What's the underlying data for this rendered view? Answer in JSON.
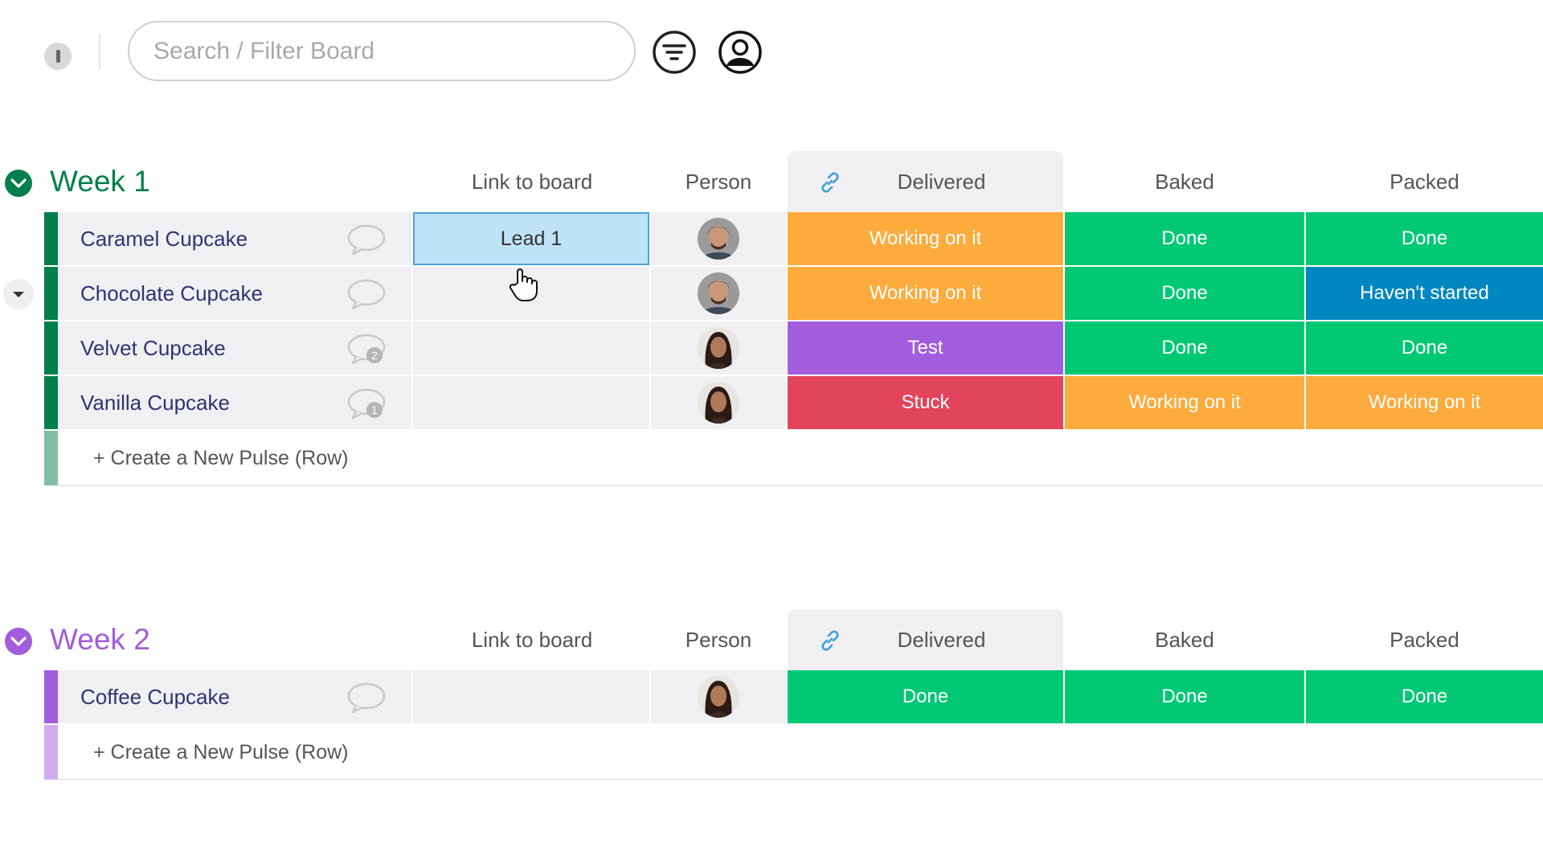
{
  "search": {
    "placeholder": "Search / Filter Board"
  },
  "columns": {
    "link": "Link to board",
    "person": "Person",
    "delivered": "Delivered",
    "baked": "Baked",
    "packed": "Packed"
  },
  "colors": {
    "week1": "#037f4c",
    "week2": "#a25ddc",
    "working": "#fdab3d",
    "done": "#00c875",
    "stuck": "#e2445c",
    "test": "#a25ddc",
    "havent_started": "#0086c0",
    "name_text": "#2e3473"
  },
  "groups": [
    {
      "title": "Week 1",
      "add_label": "+ Create a New Pulse (Row)",
      "rows": [
        {
          "name": "Caramel Cupcake",
          "link": "Lead 1",
          "comments": "",
          "person": "man",
          "delivered": "Working on it",
          "baked": "Done",
          "packed": "Done"
        },
        {
          "name": "Chocolate Cupcake",
          "link": "",
          "comments": "",
          "person": "man",
          "delivered": "Working on it",
          "baked": "Done",
          "packed": "Haven't started"
        },
        {
          "name": "Velvet Cupcake",
          "link": "",
          "comments": "2",
          "person": "woman",
          "delivered": "Test",
          "baked": "Done",
          "packed": "Done"
        },
        {
          "name": "Vanilla Cupcake",
          "link": "",
          "comments": "1",
          "person": "woman",
          "delivered": "Stuck",
          "baked": "Working on it",
          "packed": "Working on it"
        }
      ]
    },
    {
      "title": "Week 2",
      "add_label": "+ Create a New Pulse (Row)",
      "rows": [
        {
          "name": "Coffee Cupcake",
          "link": "",
          "comments": "",
          "person": "woman",
          "delivered": "Done",
          "baked": "Done",
          "packed": "Done"
        }
      ]
    }
  ]
}
